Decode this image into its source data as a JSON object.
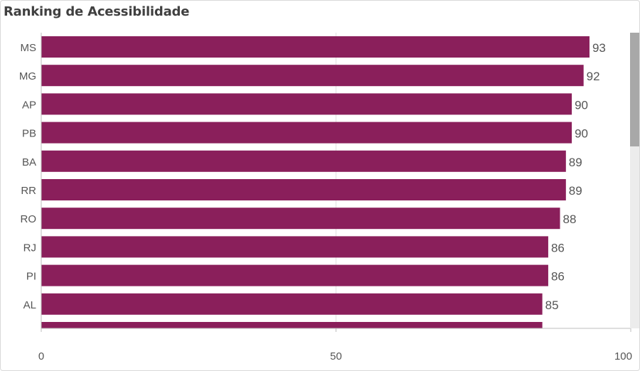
{
  "title": "Ranking de Acessibilidade",
  "colors": {
    "bar": "#8a1f5b",
    "axis": "#bdbdbd",
    "grid": "#e2e2e2",
    "text": "#555555"
  },
  "chart_data": {
    "type": "bar",
    "orientation": "horizontal",
    "title": "Ranking de Acessibilidade",
    "xlabel": "",
    "ylabel": "",
    "xlim": [
      0,
      100
    ],
    "x_ticks": [
      "0",
      "50",
      "100"
    ],
    "grid": true,
    "categories": [
      "MS",
      "MG",
      "AP",
      "PB",
      "BA",
      "RR",
      "RO",
      "RJ",
      "PI",
      "AL"
    ],
    "values": [
      93,
      92,
      90,
      90,
      89,
      89,
      88,
      86,
      86,
      85
    ],
    "partially_visible_next_value": 85
  }
}
